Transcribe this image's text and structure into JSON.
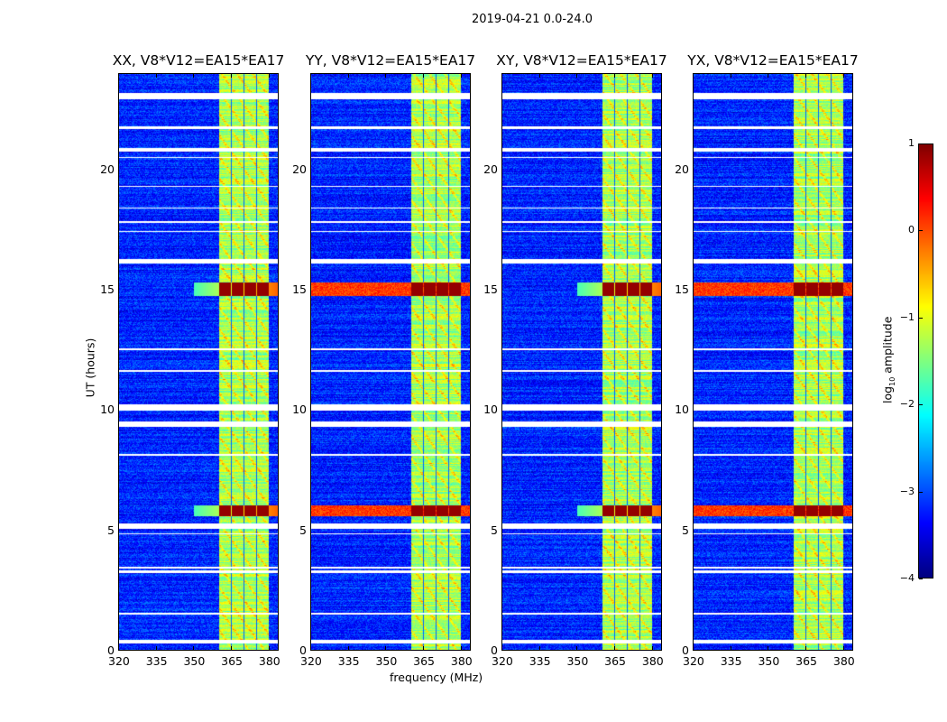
{
  "suptitle": "2019-04-21 0.0-24.0",
  "xlabel": "frequency (MHz)",
  "ylabel": "UT (hours)",
  "colorbar": {
    "label_prefix": "log",
    "label_sub": "10",
    "label_suffix": " amplitude",
    "range": [
      -4,
      1
    ],
    "ticks": [
      1,
      0,
      -1,
      -2,
      -3,
      -4
    ],
    "tick_labels": [
      "1",
      "0",
      "−1",
      "−2",
      "−3",
      "−4"
    ],
    "colormap": "jet"
  },
  "chart_data": {
    "type": "heatmap",
    "title": "2019-04-21 0.0-24.0",
    "xlabel": "frequency (MHz)",
    "ylabel": "UT (hours)",
    "xlim": [
      320,
      384
    ],
    "ylim": [
      0,
      24
    ],
    "xticks": [
      320,
      335,
      350,
      365,
      380
    ],
    "yticks": [
      0,
      5,
      10,
      15,
      20
    ],
    "value_label": "log10 amplitude",
    "value_range": [
      -4,
      1
    ],
    "background_level": -3.2,
    "band_level": -1.3,
    "sub_bands_mhz": [
      [
        360.4,
        365.1
      ],
      [
        365.5,
        370.2
      ],
      [
        370.5,
        375.2
      ],
      [
        375.6,
        380.3
      ]
    ],
    "flagged_hours": [
      [
        0.25,
        0.4
      ],
      [
        1.45,
        1.55
      ],
      [
        3.2,
        3.3
      ],
      [
        3.4,
        3.45
      ],
      [
        4.8,
        4.85
      ],
      [
        5.05,
        5.25
      ],
      [
        8.1,
        8.15
      ],
      [
        9.3,
        9.5
      ],
      [
        9.95,
        10.25
      ],
      [
        11.6,
        11.65
      ],
      [
        12.5,
        12.55
      ],
      [
        16.1,
        16.3
      ],
      [
        17.4,
        17.45
      ],
      [
        17.8,
        17.85
      ],
      [
        18.4,
        18.45
      ],
      [
        19.3,
        19.35
      ],
      [
        20.5,
        20.55
      ],
      [
        20.75,
        20.9
      ],
      [
        21.7,
        21.8
      ],
      [
        22.95,
        23.2
      ]
    ],
    "rfi_events_hours": [
      [
        5.55,
        6.0
      ],
      [
        14.75,
        15.3
      ]
    ],
    "panels": [
      {
        "title": "XX, V8*V12=EA15*EA17",
        "broadband_rfi": false
      },
      {
        "title": "YY, V8*V12=EA15*EA17",
        "broadband_rfi": true
      },
      {
        "title": "XY, V8*V12=EA15*EA17",
        "broadband_rfi": false
      },
      {
        "title": "YX, V8*V12=EA15*EA17",
        "broadband_rfi": true
      }
    ]
  }
}
